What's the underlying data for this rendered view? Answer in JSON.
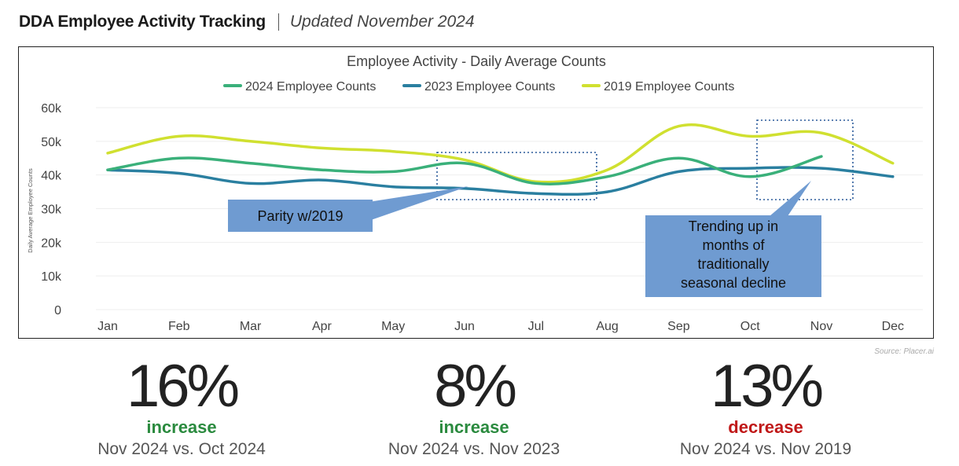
{
  "header": {
    "title": "DDA Employee Activity Tracking",
    "subtitle": "Updated November 2024"
  },
  "chart_data": {
    "type": "line",
    "title": "Employee Activity - Daily Average Counts",
    "ylabel": "Daily Average Employee Counts",
    "xlabel": "",
    "categories": [
      "Jan",
      "Feb",
      "Mar",
      "Apr",
      "May",
      "Jun",
      "Jul",
      "Aug",
      "Sep",
      "Oct",
      "Nov",
      "Dec"
    ],
    "yticks": [
      "0",
      "10k",
      "20k",
      "30k",
      "40k",
      "50k",
      "60k"
    ],
    "ylim": [
      0,
      60000
    ],
    "grid": true,
    "legend": "top-center",
    "series": [
      {
        "name": "2024 Employee Counts",
        "color": "#3ab07a",
        "values": [
          41500,
          45000,
          43500,
          41500,
          41000,
          43500,
          37500,
          39500,
          45000,
          39500,
          45500,
          null
        ]
      },
      {
        "name": "2023 Employee Counts",
        "color": "#2a7fa0",
        "values": [
          41500,
          40500,
          37500,
          38500,
          36500,
          36000,
          34500,
          35000,
          41000,
          42000,
          42000,
          39500
        ]
      },
      {
        "name": "2019 Employee Counts",
        "color": "#d0e030",
        "values": [
          46500,
          51500,
          50000,
          48000,
          47000,
          44500,
          38000,
          41500,
          54500,
          51500,
          52500,
          43500
        ]
      }
    ],
    "annotations": [
      {
        "text": "Parity w/2019"
      },
      {
        "text": "Trending up in months of traditionally seasonal decline"
      }
    ]
  },
  "source": "Source: Placer.ai",
  "stats": [
    {
      "value": "16%",
      "direction": "increase",
      "comparison": "Nov 2024 vs. Oct 2024",
      "color": "#2a8a3e"
    },
    {
      "value": "8%",
      "direction": "increase",
      "comparison": "Nov 2024 vs. Nov 2023",
      "color": "#2a8a3e"
    },
    {
      "value": "13%",
      "direction": "decrease",
      "comparison": "Nov 2024 vs. Nov 2019",
      "color": "#c01818"
    }
  ]
}
